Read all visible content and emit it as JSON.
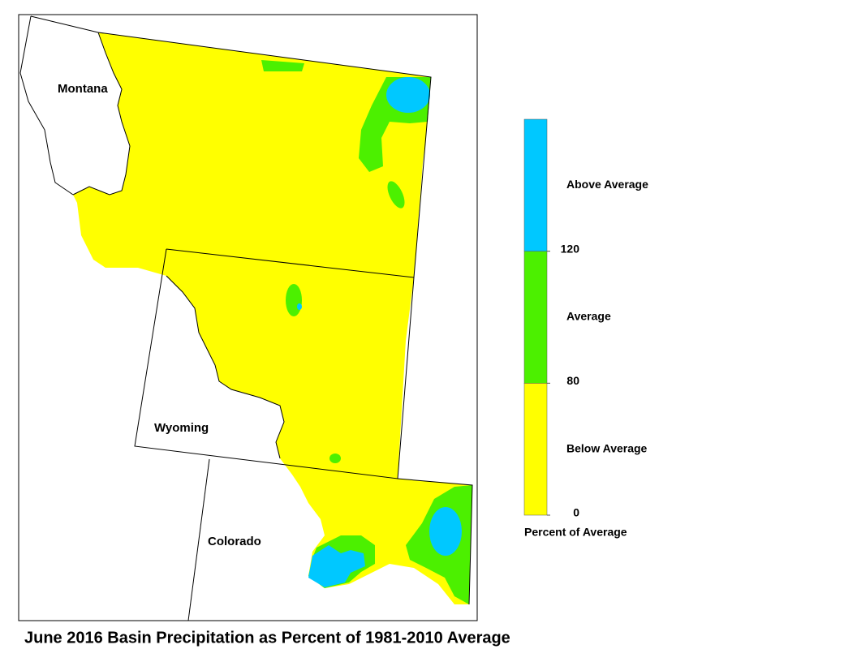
{
  "map": {
    "title": "June 2016 Basin Precipitation as Percent of 1981-2010 Average",
    "states": [
      "Montana",
      "Wyoming",
      "Colorado"
    ],
    "legend": {
      "title": "Percent of Average",
      "classes": [
        {
          "label": "Below Average",
          "color": "#ffff00"
        },
        {
          "label": "Average",
          "color": "#4cf000"
        },
        {
          "label": "Above Average",
          "color": "#00c8ff"
        }
      ],
      "ticks": [
        0,
        80,
        120
      ]
    }
  }
}
